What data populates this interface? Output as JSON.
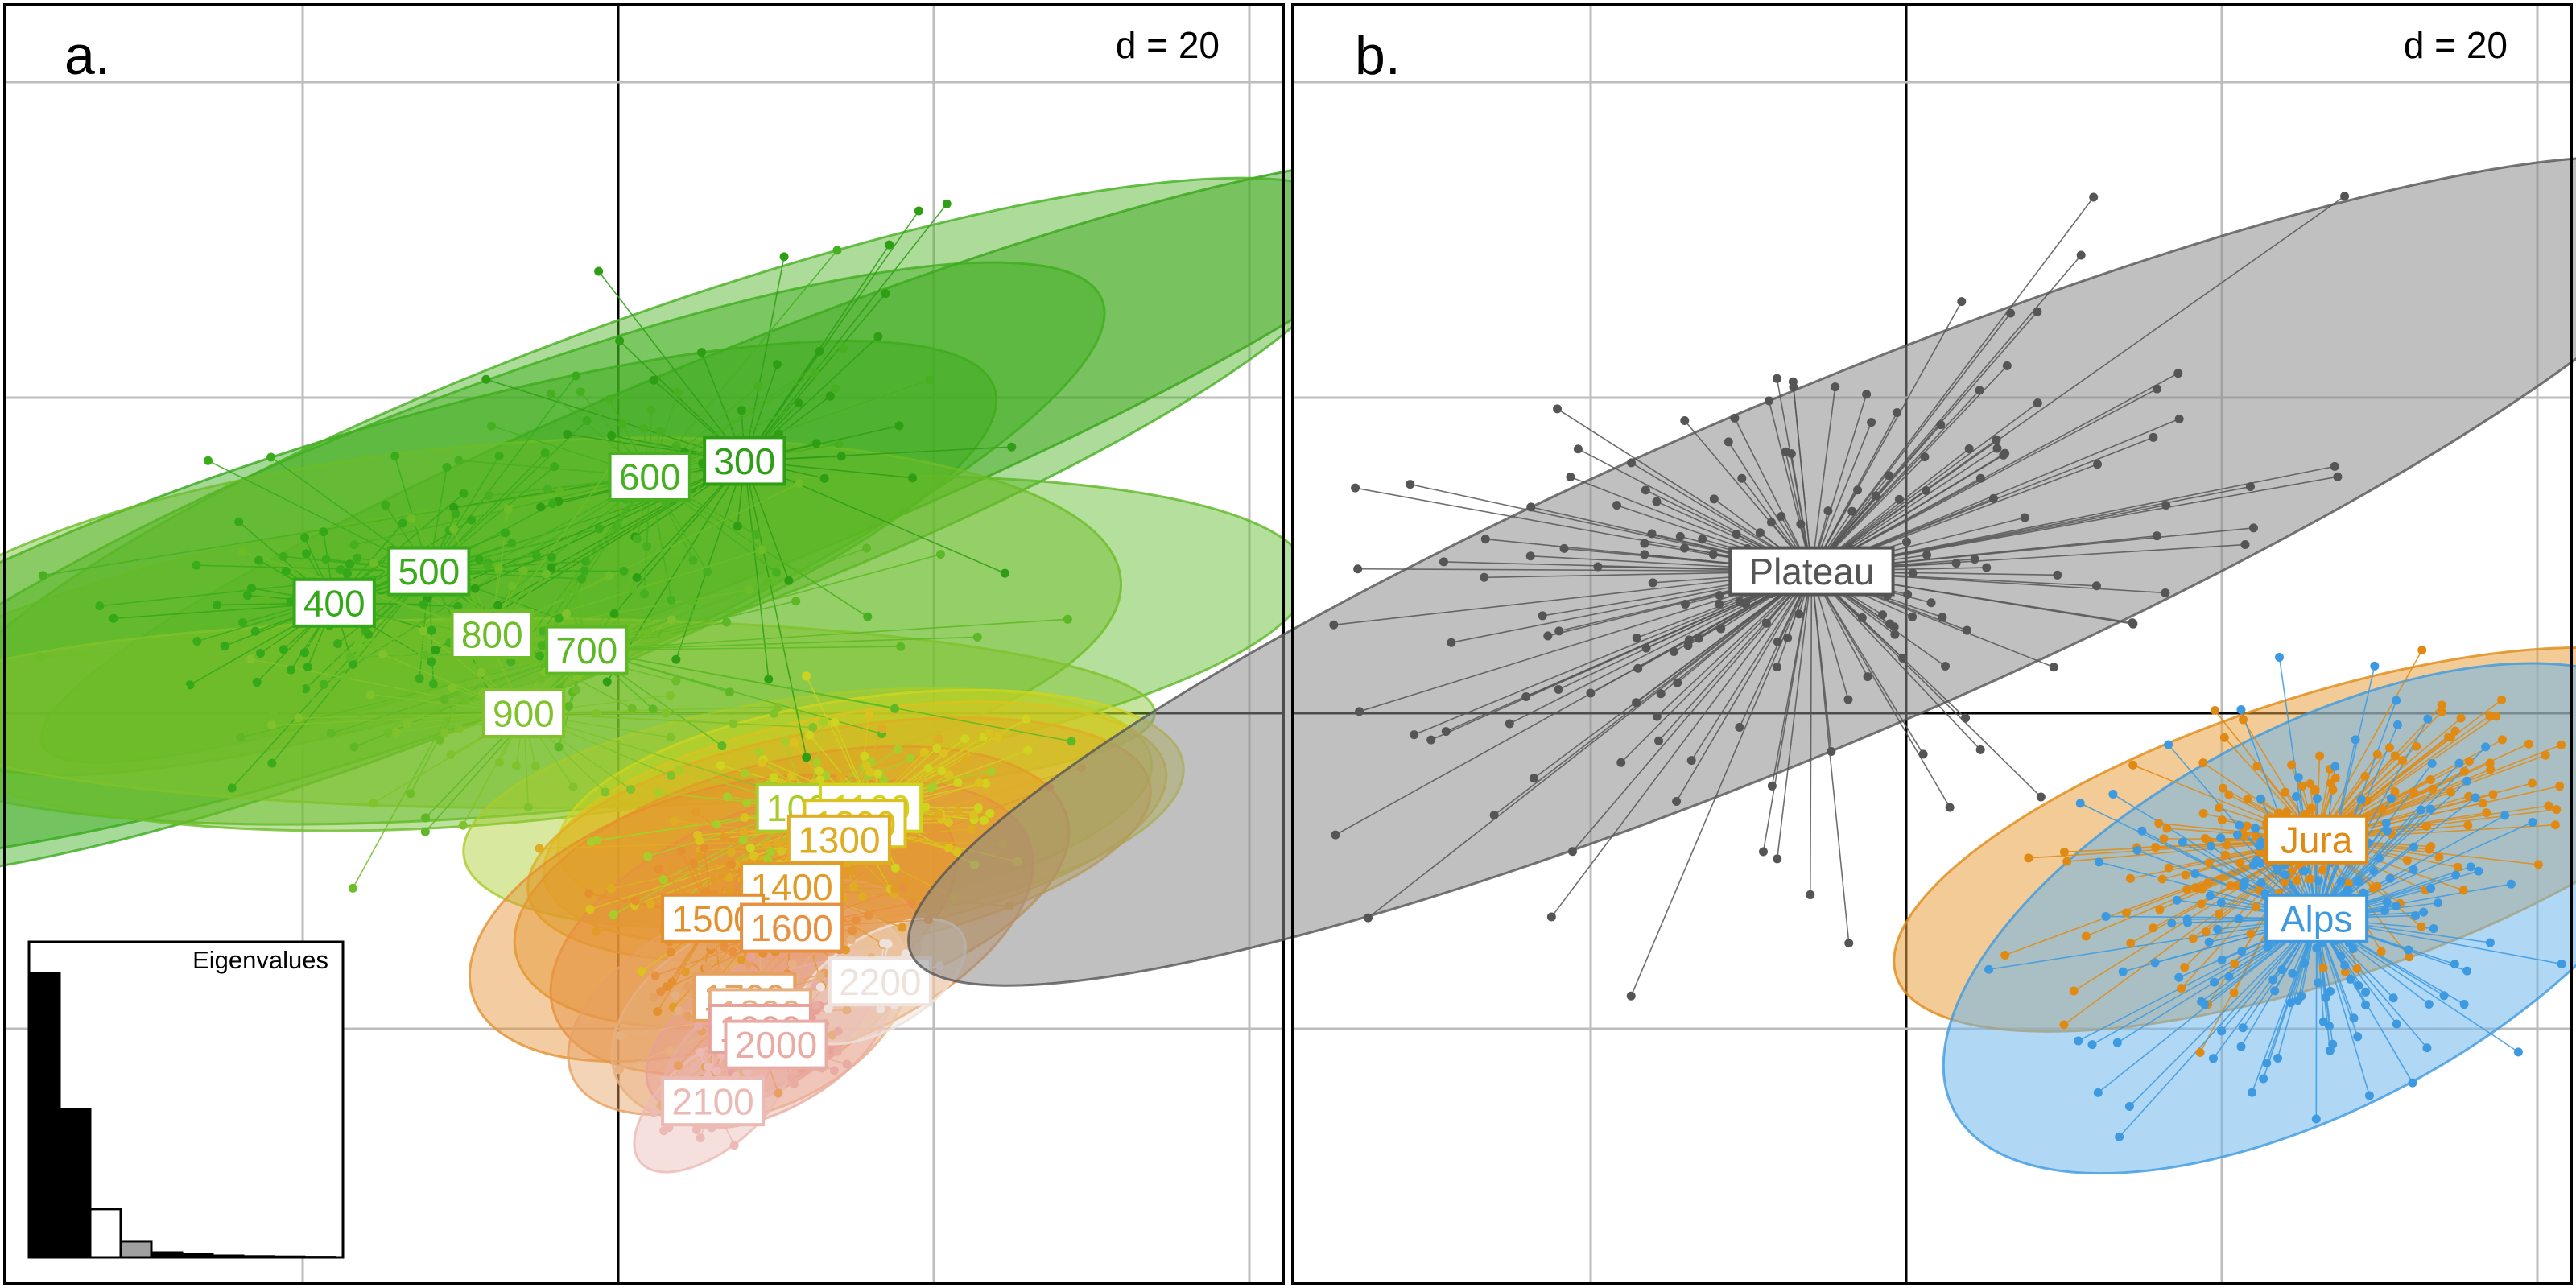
{
  "figure": {
    "panels": [
      {
        "id": "a",
        "panel_label": "a.",
        "scale_label": "d = 20",
        "inset_title": "Eigenvalues"
      },
      {
        "id": "b",
        "panel_label": "b.",
        "scale_label": "d = 20"
      }
    ]
  },
  "chart_data": [
    {
      "type": "scatter",
      "panel": "a",
      "description": "",
      "xlim": [
        -38,
        42
      ],
      "ylim": [
        -36,
        20
      ],
      "grid": true,
      "grid_step": 10,
      "groups": [
        {
          "label": "300",
          "color": "#2e9e15",
          "centroid": [
            4,
            8
          ],
          "ellipse": {
            "rx": 24,
            "ry": 3.5,
            "angle_deg": 22
          },
          "spread": [
            10,
            8
          ]
        },
        {
          "label": "400",
          "color": "#33a818",
          "centroid": [
            -9,
            3.5
          ],
          "ellipse": {
            "rx": 22,
            "ry": 5,
            "angle_deg": 18
          },
          "spread": [
            6,
            3
          ]
        },
        {
          "label": "500",
          "color": "#3aac1c",
          "centroid": [
            -6,
            4.5
          ],
          "ellipse": {
            "rx": 23,
            "ry": 5,
            "angle_deg": 22
          },
          "spread": [
            8,
            6
          ]
        },
        {
          "label": "600",
          "color": "#46b020",
          "centroid": [
            1,
            7.5
          ],
          "ellipse": {
            "rx": 24,
            "ry": 5,
            "angle_deg": 20
          },
          "spread": [
            10,
            7
          ]
        },
        {
          "label": "700",
          "color": "#5cb824",
          "centroid": [
            -1,
            2
          ],
          "ellipse": {
            "rx": 23,
            "ry": 5,
            "angle_deg": 6
          },
          "spread": [
            10,
            5
          ]
        },
        {
          "label": "800",
          "color": "#6cbd28",
          "centroid": [
            -4,
            2.5
          ],
          "ellipse": {
            "rx": 20,
            "ry": 6,
            "angle_deg": 5
          },
          "spread": [
            9,
            5
          ]
        },
        {
          "label": "900",
          "color": "#80c22c",
          "centroid": [
            -3,
            0
          ],
          "ellipse": {
            "rx": 20,
            "ry": 3,
            "angle_deg": 0
          },
          "spread": [
            9,
            3
          ]
        },
        {
          "label": "1000",
          "color": "#a8cc2a",
          "centroid": [
            6,
            -3
          ],
          "ellipse": {
            "rx": 11,
            "ry": 3.5,
            "angle_deg": 8
          },
          "spread": [
            6,
            3
          ]
        },
        {
          "label": "1100",
          "color": "#cfd41e",
          "centroid": [
            8,
            -3
          ],
          "ellipse": {
            "rx": 10,
            "ry": 3.5,
            "angle_deg": 8
          },
          "spread": [
            6,
            3
          ]
        },
        {
          "label": "1200",
          "color": "#dcc21f",
          "centroid": [
            7.5,
            -3.5
          ],
          "ellipse": {
            "rx": 10,
            "ry": 3.5,
            "angle_deg": 10
          },
          "spread": [
            6,
            3
          ]
        },
        {
          "label": "1300",
          "color": "#e0ac22",
          "centroid": [
            7,
            -4
          ],
          "ellipse": {
            "rx": 10,
            "ry": 3.5,
            "angle_deg": 10
          },
          "spread": [
            6,
            3
          ]
        },
        {
          "label": "1400",
          "color": "#e29a28",
          "centroid": [
            5.5,
            -5.5
          ],
          "ellipse": {
            "rx": 9,
            "ry": 4,
            "angle_deg": 14
          },
          "spread": [
            5,
            3
          ]
        },
        {
          "label": "1500",
          "color": "#e5902e",
          "centroid": [
            3,
            -6.5
          ],
          "ellipse": {
            "rx": 8,
            "ry": 4,
            "angle_deg": 18
          },
          "spread": [
            4,
            3
          ]
        },
        {
          "label": "1600",
          "color": "#e79040",
          "centroid": [
            5.5,
            -6.8
          ],
          "ellipse": {
            "rx": 8,
            "ry": 4,
            "angle_deg": 20
          },
          "spread": [
            4,
            3
          ]
        },
        {
          "label": "1700",
          "color": "#e6a060",
          "centroid": [
            4,
            -9
          ],
          "ellipse": {
            "rx": 6,
            "ry": 3,
            "angle_deg": 25
          },
          "spread": [
            3,
            2.5
          ]
        },
        {
          "label": "1800",
          "color": "#e6b080",
          "centroid": [
            4.5,
            -9.5
          ],
          "ellipse": {
            "rx": 5,
            "ry": 3,
            "angle_deg": 25
          },
          "spread": [
            3,
            2.5
          ]
        },
        {
          "label": "1900",
          "color": "#e8a098",
          "centroid": [
            4.5,
            -10
          ],
          "ellipse": {
            "rx": 4,
            "ry": 2,
            "angle_deg": 30
          },
          "spread": [
            2.5,
            2
          ]
        },
        {
          "label": "2000",
          "color": "#e9aca4",
          "centroid": [
            5,
            -10.5
          ],
          "ellipse": {
            "rx": 4,
            "ry": 2,
            "angle_deg": 30
          },
          "spread": [
            2,
            2
          ]
        },
        {
          "label": "2100",
          "color": "#ecbab4",
          "centroid": [
            3,
            -12.3
          ],
          "ellipse": {
            "rx": 3,
            "ry": 1.5,
            "angle_deg": 40
          },
          "spread": [
            1.5,
            1.5
          ]
        },
        {
          "label": "2200",
          "color": "#eee2dc",
          "centroid": [
            8.3,
            -8.5
          ],
          "ellipse": {
            "rx": 3,
            "ry": 1.5,
            "angle_deg": 30
          },
          "spread": [
            1.5,
            1.2
          ]
        }
      ],
      "eigenvalues": [
        0.88,
        0.46,
        0.15,
        0.05,
        0.015,
        0.01,
        0.005,
        0.003,
        0.002,
        0.001
      ],
      "eigenvalue_fill": [
        "black",
        "black",
        "white",
        "grey",
        "black",
        "black",
        "black",
        "black",
        "black",
        "black"
      ]
    },
    {
      "type": "scatter",
      "panel": "b",
      "description": "",
      "xlim": [
        -38,
        42
      ],
      "ylim": [
        -36,
        20
      ],
      "grid": true,
      "grid_step": 10,
      "groups": [
        {
          "label": "Plateau",
          "color": "#555555",
          "fill": "#8c8c8c",
          "centroid": [
            -3,
            4.5
          ],
          "ellipse": {
            "rx": 31,
            "ry": 5.5,
            "angle_deg": 23
          },
          "spread": [
            14,
            8
          ]
        },
        {
          "label": "Jura",
          "color": "#e08a14",
          "fill": "#e8a040",
          "centroid": [
            13,
            -4
          ],
          "ellipse": {
            "rx": 14,
            "ry": 4.5,
            "angle_deg": 18
          },
          "spread": [
            8,
            4
          ]
        },
        {
          "label": "Alps",
          "color": "#3d9ae0",
          "fill": "#6fb6ea",
          "centroid": [
            13,
            -6.5
          ],
          "ellipse": {
            "rx": 13,
            "ry": 6,
            "angle_deg": 28
          },
          "spread": [
            6,
            6
          ]
        }
      ]
    }
  ]
}
